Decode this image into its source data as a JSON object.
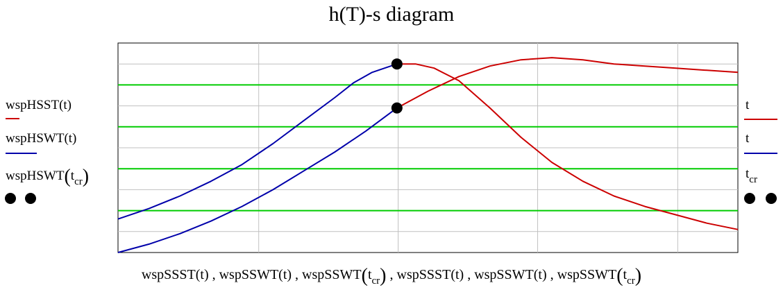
{
  "chart_data": {
    "type": "line",
    "title": "h(T)-s diagram",
    "xlabel": "wspSSST(t) , wspSSWT(t) , wspSSWT(tcr) , wspSSST(t) , wspSSWT(t) , wspSSWT(tcr)",
    "ylabel": "",
    "grid": true,
    "left_legend": [
      {
        "text": "wspHSST(t)",
        "color": "#cc0000"
      },
      {
        "text": "wspHSWT(t)",
        "color": "#0000aa"
      },
      {
        "text_main": "wspHSWT",
        "text_sub": "cr",
        "text_sub_prefix": "t",
        "color": "#000000"
      }
    ],
    "right_legend": [
      {
        "text": "t",
        "color": "#cc0000"
      },
      {
        "text": "t",
        "color": "#0000aa"
      },
      {
        "text_prefix": "t",
        "text_sub": "cr",
        "color": "#000000"
      }
    ],
    "xlim": [
      0,
      1
    ],
    "ylim": [
      0,
      1
    ],
    "series": [
      {
        "color": "#0000aa",
        "points": [
          [
            0,
            0
          ],
          [
            0.05,
            0.04
          ],
          [
            0.1,
            0.09
          ],
          [
            0.15,
            0.15
          ],
          [
            0.2,
            0.22
          ],
          [
            0.25,
            0.3
          ],
          [
            0.3,
            0.39
          ],
          [
            0.35,
            0.48
          ],
          [
            0.4,
            0.58
          ],
          [
            0.45,
            0.69
          ]
        ]
      },
      {
        "color": "#0000aa",
        "points": [
          [
            0,
            0.16
          ],
          [
            0.05,
            0.21
          ],
          [
            0.1,
            0.27
          ],
          [
            0.15,
            0.34
          ],
          [
            0.2,
            0.42
          ],
          [
            0.25,
            0.52
          ],
          [
            0.3,
            0.63
          ],
          [
            0.35,
            0.74
          ],
          [
            0.38,
            0.81
          ],
          [
            0.41,
            0.86
          ],
          [
            0.44,
            0.89
          ],
          [
            0.45,
            0.9
          ]
        ]
      },
      {
        "color": "#cc0000",
        "points": [
          [
            0.45,
            0.9
          ],
          [
            0.48,
            0.9
          ],
          [
            0.51,
            0.88
          ],
          [
            0.55,
            0.82
          ],
          [
            0.6,
            0.69
          ],
          [
            0.65,
            0.55
          ],
          [
            0.7,
            0.43
          ],
          [
            0.75,
            0.34
          ],
          [
            0.8,
            0.27
          ],
          [
            0.85,
            0.22
          ],
          [
            0.9,
            0.18
          ],
          [
            0.95,
            0.14
          ],
          [
            1,
            0.11
          ]
        ]
      },
      {
        "color": "#cc0000",
        "points": [
          [
            0.45,
            0.69
          ],
          [
            0.5,
            0.77
          ],
          [
            0.55,
            0.84
          ],
          [
            0.6,
            0.89
          ],
          [
            0.65,
            0.92
          ],
          [
            0.7,
            0.93
          ],
          [
            0.75,
            0.92
          ],
          [
            0.8,
            0.9
          ],
          [
            0.85,
            0.89
          ],
          [
            0.9,
            0.88
          ],
          [
            0.95,
            0.87
          ],
          [
            1,
            0.86
          ]
        ]
      }
    ],
    "markers": [
      [
        0.45,
        0.9
      ],
      [
        0.45,
        0.69
      ]
    ],
    "hlines": {
      "color": "#00cc00",
      "y": [
        0.8,
        0.6,
        0.4,
        0.2
      ]
    },
    "grid_x": [
      0.227,
      0.452,
      0.677,
      0.903
    ],
    "grid_y": [
      0.9,
      0.7,
      0.5,
      0.3,
      0.1
    ]
  }
}
